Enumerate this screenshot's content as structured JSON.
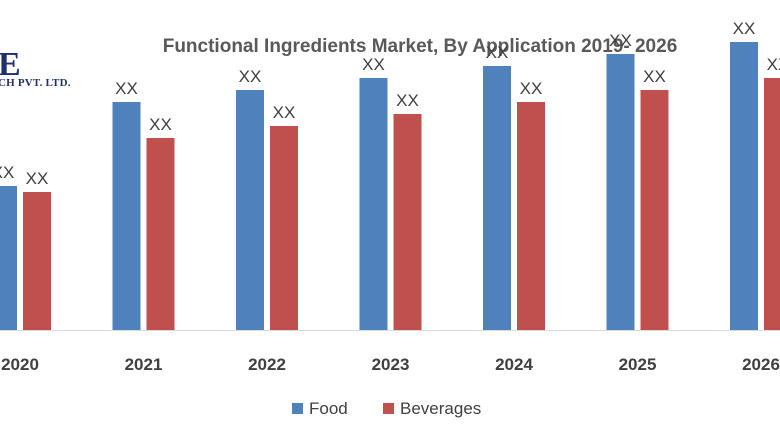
{
  "chart_data": {
    "type": "bar",
    "title": "Functional Ingredients Market, By Application  2019- 2026",
    "categories": [
      "2020",
      "2021",
      "2022",
      "2023",
      "2024",
      "2025",
      "2026"
    ],
    "series": [
      {
        "name": "Food",
        "color": "#4f81bd",
        "values": [
          12,
          19,
          20,
          21,
          22,
          23,
          24
        ],
        "data_labels": [
          "XX",
          "XX",
          "XX",
          "XX",
          "XX",
          "XX",
          "XX"
        ]
      },
      {
        "name": "Beverages",
        "color": "#c0504d",
        "values": [
          11.5,
          16,
          17,
          18,
          19,
          20,
          21
        ],
        "data_labels": [
          "XX",
          "XX",
          "XX",
          "XX",
          "XX",
          "XX",
          "XX"
        ]
      }
    ],
    "ylim": [
      0,
      25
    ],
    "grid": false,
    "legend": "bottom"
  },
  "logo": {
    "mark": "E",
    "text": "CH PVT. LTD."
  }
}
